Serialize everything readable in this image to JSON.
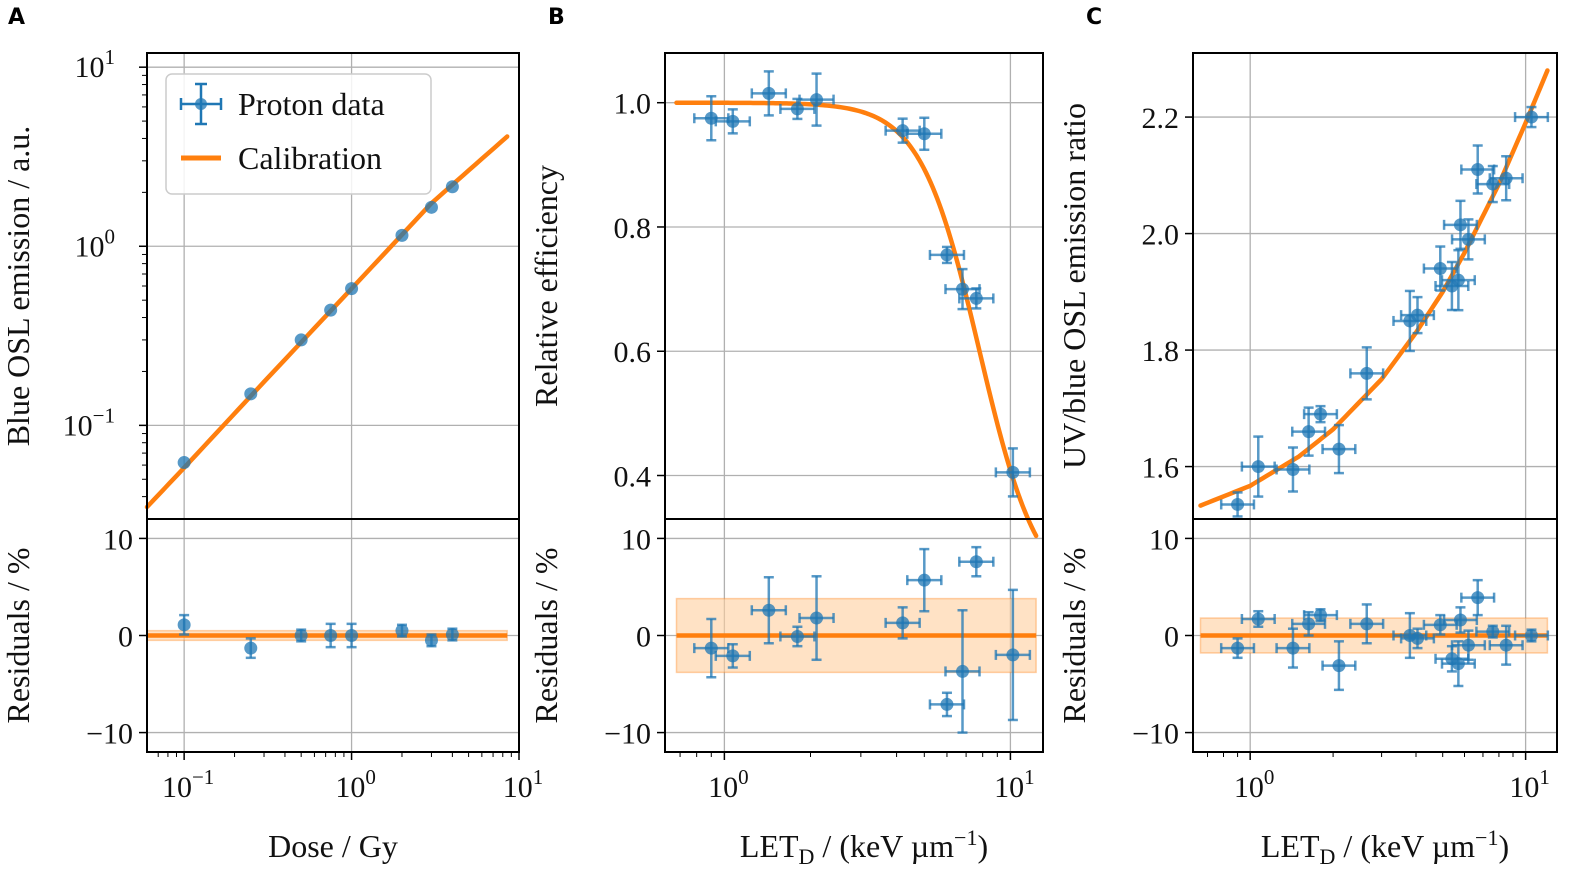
{
  "figure": {
    "colors": {
      "data": "#1f77b4",
      "fit": "#ff7f0e",
      "band": "#ffcf9e",
      "grid": "#b0b0b0"
    },
    "legend": {
      "data_label": "Proton data",
      "fit_label": "Calibration"
    }
  },
  "chart_data": [
    {
      "panel": "A",
      "type": "scatter",
      "xscale": "log",
      "yscale": "log",
      "xlim": [
        0.06,
        10
      ],
      "ylim": [
        0.03,
        12
      ],
      "xlabel": "Dose / Gy",
      "ylabel": "Blue OSL emission / a.u.",
      "xticks": [
        {
          "v": 0.1,
          "b": "10",
          "e": "−1"
        },
        {
          "v": 1,
          "b": "10",
          "e": "0"
        },
        {
          "v": 10,
          "b": "10",
          "e": "1"
        }
      ],
      "yticks": [
        {
          "v": 0.1,
          "b": "10",
          "e": "−1"
        },
        {
          "v": 1,
          "b": "10",
          "e": "0"
        },
        {
          "v": 10,
          "b": "10",
          "e": "1"
        }
      ],
      "grid": true,
      "legend_position": "top-left",
      "series": [
        {
          "name": "Proton data",
          "x": [
            0.1,
            0.25,
            0.5,
            0.75,
            1,
            2,
            3,
            4
          ],
          "y": [
            0.062,
            0.15,
            0.3,
            0.44,
            0.58,
            1.15,
            1.65,
            2.15
          ]
        },
        {
          "name": "Calibration",
          "kind": "line",
          "x": [
            0.06,
            0.1,
            0.3,
            1,
            3,
            8.5
          ],
          "y": [
            0.035,
            0.058,
            0.175,
            0.58,
            1.74,
            4.1
          ]
        }
      ],
      "residuals": {
        "ylabel": "Residuals / %",
        "ylim": [
          -12,
          12
        ],
        "yticks": [
          "10",
          "0",
          "−10"
        ],
        "x": [
          0.1,
          0.25,
          0.5,
          0.75,
          1,
          2,
          3,
          4
        ],
        "y": [
          1.1,
          -1.3,
          0.0,
          0.0,
          0.0,
          0.5,
          -0.5,
          0.1
        ],
        "yerr": [
          1.0,
          1.0,
          0.6,
          1.2,
          1.2,
          0.6,
          0.6,
          0.6
        ],
        "band": 0.5
      }
    },
    {
      "panel": "B",
      "type": "scatter",
      "xscale": "log",
      "yscale": "linear",
      "xlim": [
        0.62,
        13
      ],
      "ylim": [
        0.33,
        1.08
      ],
      "xlabel": "LET",
      "xlabel_sub": "D",
      "xlabel_tail": " / (keV µm",
      "xlabel_sup": "−1",
      "xlabel_close": ")",
      "ylabel": "Relative efficiency",
      "xticks": [
        {
          "v": 1,
          "b": "10",
          "e": "0"
        },
        {
          "v": 10,
          "b": "10",
          "e": "1"
        }
      ],
      "yticks": [
        "0.4",
        "0.6",
        "0.8",
        "1.0"
      ],
      "grid": true,
      "series": [
        {
          "name": "Proton data",
          "x": [
            0.9,
            1.07,
            1.43,
            1.8,
            2.1,
            4.2,
            5.0,
            6.0,
            6.8,
            7.6,
            10.2
          ],
          "y": [
            0.975,
            0.97,
            1.015,
            0.99,
            1.005,
            0.955,
            0.95,
            0.755,
            0.7,
            0.685,
            0.405
          ]
        },
        {
          "name": "Calibration",
          "kind": "line",
          "model": "logistic",
          "params": {
            "top": 1.0,
            "x0": 7.8,
            "slope": 4.2,
            "bottom": 0.2
          }
        }
      ],
      "residuals": {
        "ylabel": "Residuals / %",
        "ylim": [
          -12,
          12
        ],
        "yticks": [
          "10",
          "0",
          "−10"
        ],
        "x": [
          0.9,
          1.07,
          1.43,
          1.8,
          2.1,
          4.2,
          5.0,
          6.0,
          6.8,
          7.6,
          10.2
        ],
        "y": [
          -1.3,
          -2.1,
          2.6,
          -0.1,
          1.8,
          1.3,
          5.7,
          -7.1,
          -3.7,
          7.6,
          -2.0
        ],
        "yerr": [
          3.0,
          1.2,
          3.4,
          1.0,
          4.3,
          1.6,
          3.2,
          1.2,
          6.3,
          1.5,
          6.7
        ],
        "band": 3.8
      }
    },
    {
      "panel": "C",
      "type": "scatter",
      "xscale": "log",
      "yscale": "linear",
      "xlim": [
        0.62,
        13
      ],
      "ylim": [
        1.51,
        2.31
      ],
      "xlabel": "LET",
      "xlabel_sub": "D",
      "xlabel_tail": " / (keV µm",
      "xlabel_sup": "−1",
      "xlabel_close": ")",
      "ylabel": "UV/blue OSL emission ratio",
      "xticks": [
        {
          "v": 1,
          "b": "10",
          "e": "0"
        },
        {
          "v": 10,
          "b": "10",
          "e": "1"
        }
      ],
      "yticks": [
        "1.6",
        "1.8",
        "2.0",
        "2.2"
      ],
      "grid": true,
      "series": [
        {
          "name": "Proton data",
          "x": [
            0.9,
            1.07,
            1.43,
            1.63,
            1.8,
            2.1,
            2.65,
            3.8,
            4.05,
            4.9,
            5.4,
            5.7,
            5.8,
            6.2,
            6.7,
            7.6,
            8.5,
            10.5
          ],
          "y": [
            1.535,
            1.6,
            1.595,
            1.66,
            1.69,
            1.63,
            1.76,
            1.85,
            1.86,
            1.94,
            1.91,
            1.92,
            2.015,
            1.99,
            2.11,
            2.085,
            2.095,
            2.2
          ]
        },
        {
          "name": "Calibration",
          "kind": "line",
          "x": [
            0.66,
            1,
            1.5,
            2,
            3,
            4,
            5,
            6,
            8,
            10,
            12
          ],
          "y": [
            1.533,
            1.567,
            1.617,
            1.664,
            1.75,
            1.83,
            1.9,
            1.967,
            2.085,
            2.19,
            2.28
          ]
        }
      ],
      "residuals": {
        "ylabel": "Residuals / %",
        "ylim": [
          -12,
          12
        ],
        "yticks": [
          "10",
          "0",
          "−10"
        ],
        "x": [
          0.9,
          1.07,
          1.43,
          1.63,
          1.8,
          2.1,
          2.65,
          3.8,
          4.05,
          4.9,
          5.4,
          5.7,
          5.8,
          6.2,
          6.7,
          7.6,
          8.5,
          10.5
        ],
        "y": [
          -1.3,
          1.7,
          -1.3,
          1.2,
          2.1,
          -3.1,
          1.2,
          0.0,
          -0.3,
          1.1,
          -2.4,
          -2.9,
          1.6,
          -1.0,
          3.9,
          0.4,
          -1.0,
          0.0
        ],
        "yerr": [
          1.0,
          0.8,
          2.0,
          1.2,
          0.6,
          2.5,
          2.0,
          2.3,
          1.0,
          1.0,
          1.3,
          2.3,
          1.3,
          1.5,
          1.8,
          0.6,
          2.0,
          0.6
        ],
        "band": 1.8
      }
    }
  ]
}
